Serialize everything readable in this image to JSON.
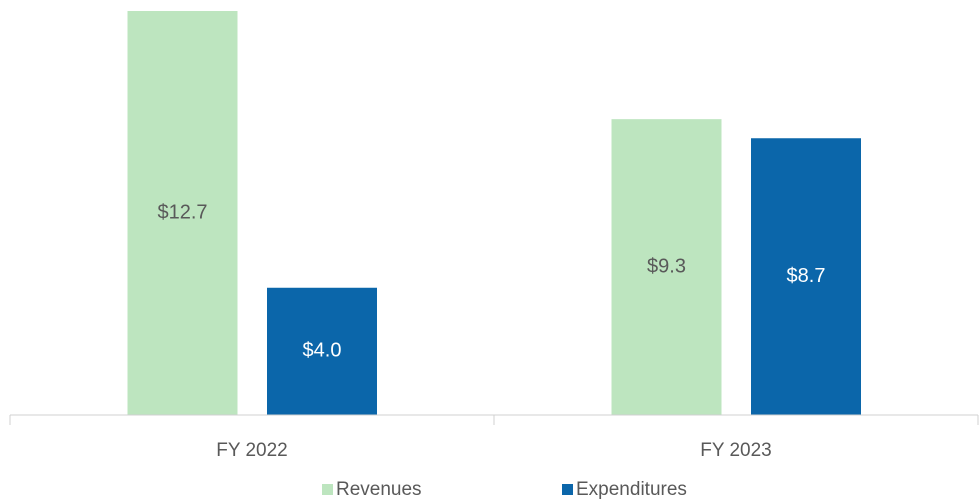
{
  "chart_data": {
    "type": "bar",
    "categories": [
      "FY 2022",
      "FY 2023"
    ],
    "series": [
      {
        "name": "Revenues",
        "color": "#bde5bf",
        "label_color": "#595959",
        "values": [
          12.7,
          9.3
        ],
        "value_labels": [
          "$12.7",
          "$9.3"
        ]
      },
      {
        "name": "Expenditures",
        "color": "#0b66aa",
        "label_color": "#ffffff",
        "values": [
          4.0,
          8.7
        ],
        "value_labels": [
          "$4.0",
          "$8.7"
        ]
      }
    ],
    "legend": "bottom"
  }
}
